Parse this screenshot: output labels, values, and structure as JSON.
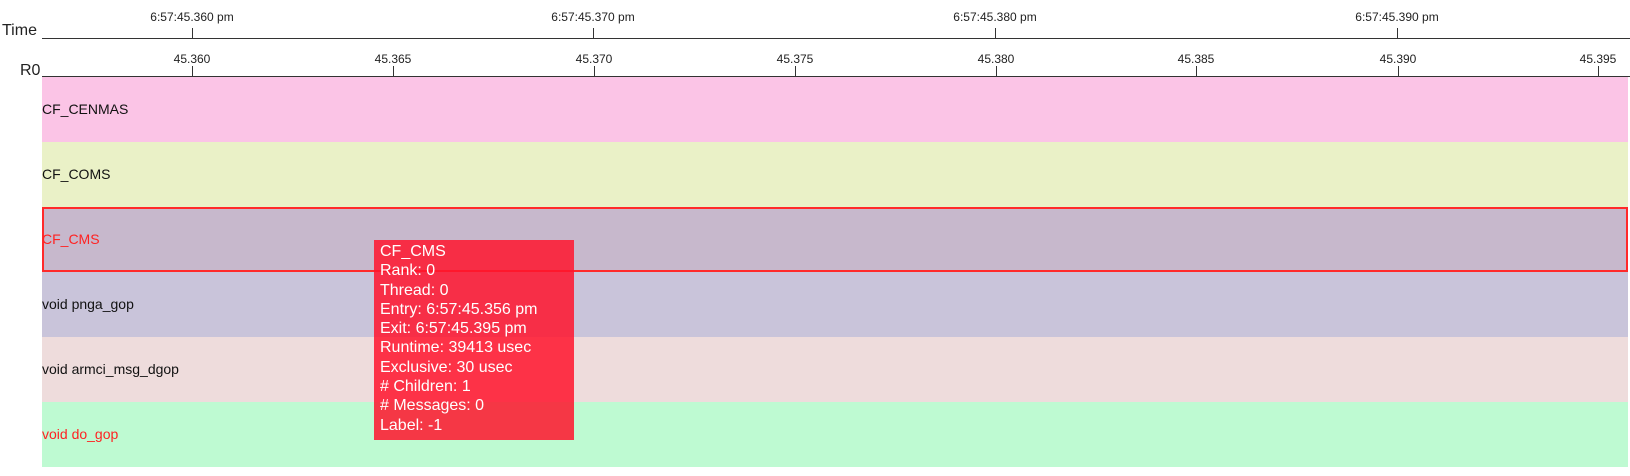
{
  "axes": {
    "time": {
      "label": "Time",
      "ticks": [
        "6:57:45.360 pm",
        "6:57:45.370 pm",
        "6:57:45.380 pm",
        "6:57:45.390 pm"
      ]
    },
    "rank": {
      "label": "R0",
      "ticks": [
        "45.360",
        "45.365",
        "45.370",
        "45.375",
        "45.380",
        "45.385",
        "45.390",
        "45.395"
      ]
    }
  },
  "rows": [
    {
      "label": "CF_CENMAS",
      "color": "#fbc4e6",
      "label_color": "#111111"
    },
    {
      "label": "CF_COMS",
      "color": "#eaf1c7",
      "label_color": "#111111"
    },
    {
      "label": "CF_CMS",
      "color": "#c7b8cc",
      "label_color": "#ff2222",
      "selected": true
    },
    {
      "label": "void pnga_gop",
      "color": "#c9c4da",
      "label_color": "#111111"
    },
    {
      "label": "void armci_msg_dgop",
      "color": "#eedcdc",
      "label_color": "#111111"
    },
    {
      "label": "void do_gop",
      "color": "#befad2",
      "label_color": "#ff2222"
    }
  ],
  "tooltip": {
    "name": "CF_CMS",
    "rank": "Rank: 0",
    "thread": "Thread: 0",
    "entry": "Entry: 6:57:45.356 pm",
    "exit": "Exit: 6:57:45.395 pm",
    "runtime": "Runtime: 39413 usec",
    "exclusive": "Exclusive: 30 usec",
    "children": "# Children: 1",
    "messages": "# Messages: 0",
    "label": "Label: -1"
  }
}
